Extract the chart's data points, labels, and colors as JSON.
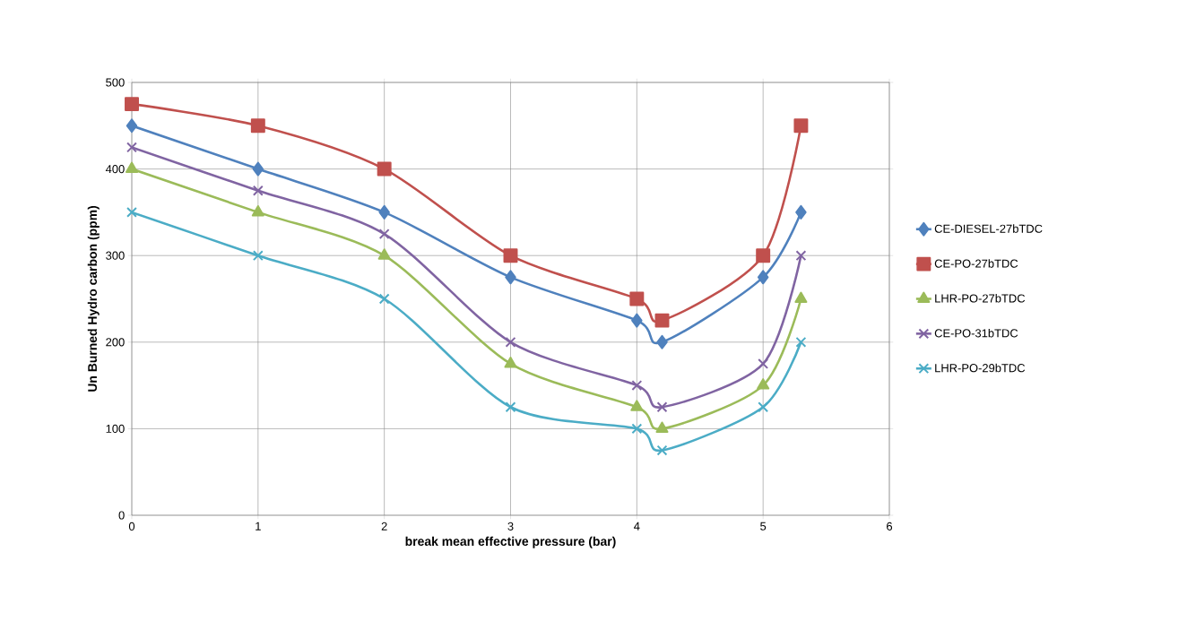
{
  "chart_data": {
    "type": "line",
    "xlabel": "break mean effective pressure (bar)",
    "ylabel": "Un Burned Hydro carbon (ppm)",
    "x": [
      0,
      1,
      2,
      3,
      4,
      4.2,
      5,
      5.3
    ],
    "xlim": [
      0,
      6
    ],
    "xticks": [
      0,
      1,
      2,
      3,
      4,
      5,
      6
    ],
    "ylim": [
      0,
      500
    ],
    "yticks": [
      0,
      100,
      200,
      300,
      400,
      500
    ],
    "grid": true,
    "legend": "right",
    "line_style": "solid",
    "series": [
      {
        "name": "CE-DIESEL-27bTDC",
        "color": "#4f81bd",
        "marker": "diamond",
        "values": [
          450,
          400,
          350,
          275,
          225,
          200,
          275,
          350
        ]
      },
      {
        "name": "CE-PO-27bTDC",
        "color": "#c0504d",
        "marker": "square",
        "values": [
          475,
          450,
          400,
          300,
          250,
          225,
          300,
          450
        ]
      },
      {
        "name": "LHR-PO-27bTDC",
        "color": "#9bbb59",
        "marker": "triangle",
        "values": [
          400,
          350,
          300,
          175,
          125,
          100,
          150,
          250
        ]
      },
      {
        "name": "CE-PO-31bTDC",
        "color": "#8064a2",
        "marker": "cross",
        "values": [
          425,
          375,
          325,
          200,
          150,
          125,
          175,
          300
        ]
      },
      {
        "name": "LHR-PO-29bTDC",
        "color": "#4bacc6",
        "marker": "cross",
        "values": [
          350,
          300,
          250,
          125,
          100,
          75,
          125,
          200
        ]
      }
    ]
  }
}
